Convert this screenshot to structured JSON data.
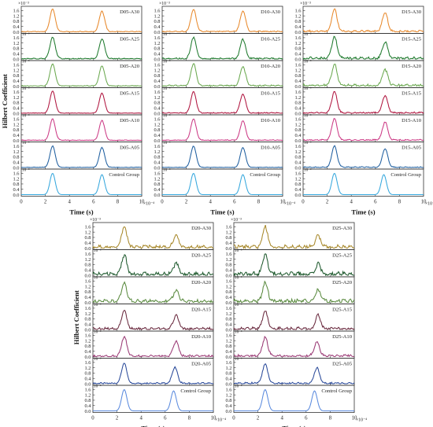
{
  "figure": {
    "ylabel": "Hilbert Coefficient",
    "xlabel": "Time (s)",
    "x_exponent": "×10⁻⁴",
    "y_exponent": "×10⁻³",
    "y_exponent_inline": "10⁻³",
    "x_ticks": [
      "0",
      "2",
      "4",
      "6",
      "8",
      "10"
    ],
    "y_ticks": [
      "0.0",
      "0.4",
      "0.8",
      "1.2",
      "1.6"
    ]
  },
  "chart_data": [
    {
      "type": "line",
      "group": "D05",
      "xlabel": "Time (s)",
      "ylabel": "Hilbert Coefficient",
      "xlim": [
        0,
        10
      ],
      "ylim": [
        0,
        1.8
      ],
      "x_units": "×10⁻⁴",
      "y_units": "×10⁻³",
      "series": [
        {
          "name": "D05-A30",
          "color": "#e8892c",
          "peaks": [
            {
              "x": 2.6,
              "y": 1.7
            },
            {
              "x": 6.7,
              "y": 1.55
            }
          ],
          "noise": 0.03
        },
        {
          "name": "D05-A25",
          "color": "#1f7a2e",
          "peaks": [
            {
              "x": 2.6,
              "y": 1.6
            },
            {
              "x": 6.7,
              "y": 1.5
            }
          ],
          "noise": 0.04
        },
        {
          "name": "D05-A20",
          "color": "#6aa84f",
          "peaks": [
            {
              "x": 2.6,
              "y": 1.65
            },
            {
              "x": 6.7,
              "y": 1.5
            }
          ],
          "noise": 0.03
        },
        {
          "name": "D05-A15",
          "color": "#b0153f",
          "peaks": [
            {
              "x": 2.6,
              "y": 1.65
            },
            {
              "x": 6.7,
              "y": 1.5
            }
          ],
          "noise": 0.02
        },
        {
          "name": "D05-A10",
          "color": "#cc3a85",
          "peaks": [
            {
              "x": 2.6,
              "y": 1.6
            },
            {
              "x": 6.7,
              "y": 1.5
            }
          ],
          "noise": 0.02
        },
        {
          "name": "D05-A05",
          "color": "#1f5fa0",
          "peaks": [
            {
              "x": 2.6,
              "y": 1.6
            },
            {
              "x": 6.7,
              "y": 1.5
            }
          ],
          "noise": 0.02
        },
        {
          "name": "Control Group",
          "color": "#35a7dd",
          "peaks": [
            {
              "x": 2.6,
              "y": 1.6
            },
            {
              "x": 6.7,
              "y": 1.5
            }
          ],
          "noise": 0.0
        }
      ]
    },
    {
      "type": "line",
      "group": "D10",
      "xlabel": "Time (s)",
      "xlim": [
        0,
        10
      ],
      "ylim": [
        0,
        1.8
      ],
      "x_units": "×10⁻⁴",
      "y_units": "×10⁻³",
      "series": [
        {
          "name": "D10-A30",
          "color": "#e8892c",
          "peaks": [
            {
              "x": 2.6,
              "y": 1.65
            },
            {
              "x": 6.7,
              "y": 1.55
            }
          ],
          "noise": 0.05
        },
        {
          "name": "D10-A25",
          "color": "#1f7a2e",
          "peaks": [
            {
              "x": 2.6,
              "y": 1.6
            },
            {
              "x": 6.7,
              "y": 1.45
            }
          ],
          "noise": 0.06
        },
        {
          "name": "D10-A20",
          "color": "#6aa84f",
          "peaks": [
            {
              "x": 2.6,
              "y": 1.65
            },
            {
              "x": 6.7,
              "y": 1.45
            }
          ],
          "noise": 0.06
        },
        {
          "name": "D10-A15",
          "color": "#b0153f",
          "peaks": [
            {
              "x": 2.6,
              "y": 1.6
            },
            {
              "x": 6.7,
              "y": 1.45
            }
          ],
          "noise": 0.04
        },
        {
          "name": "D10-A10",
          "color": "#cc3a85",
          "peaks": [
            {
              "x": 2.6,
              "y": 1.6
            },
            {
              "x": 6.7,
              "y": 1.45
            }
          ],
          "noise": 0.03
        },
        {
          "name": "D10-A05",
          "color": "#1f5fa0",
          "peaks": [
            {
              "x": 2.6,
              "y": 1.6
            },
            {
              "x": 6.7,
              "y": 1.5
            }
          ],
          "noise": 0.02
        },
        {
          "name": "Control Group",
          "color": "#35a7dd",
          "peaks": [
            {
              "x": 2.6,
              "y": 1.6
            },
            {
              "x": 6.7,
              "y": 1.5
            }
          ],
          "noise": 0.0
        }
      ]
    },
    {
      "type": "line",
      "group": "D15",
      "xlabel": "Time (s)",
      "xlim": [
        0,
        10
      ],
      "ylim": [
        0,
        1.8
      ],
      "x_units": "×10⁻⁴",
      "y_units": "×10⁻³",
      "series": [
        {
          "name": "D15-A30",
          "color": "#e8892c",
          "peaks": [
            {
              "x": 2.6,
              "y": 1.65
            },
            {
              "x": 6.8,
              "y": 1.4
            }
          ],
          "noise": 0.08
        },
        {
          "name": "D15-A25",
          "color": "#1f7a2e",
          "peaks": [
            {
              "x": 2.6,
              "y": 1.6
            },
            {
              "x": 6.8,
              "y": 1.25
            }
          ],
          "noise": 0.1
        },
        {
          "name": "D15-A20",
          "color": "#6aa84f",
          "peaks": [
            {
              "x": 2.6,
              "y": 1.6
            },
            {
              "x": 6.8,
              "y": 1.2
            }
          ],
          "noise": 0.1
        },
        {
          "name": "D15-A15",
          "color": "#b0153f",
          "peaks": [
            {
              "x": 2.6,
              "y": 1.6
            },
            {
              "x": 6.8,
              "y": 1.3
            }
          ],
          "noise": 0.06
        },
        {
          "name": "D15-A10",
          "color": "#cc3a85",
          "peaks": [
            {
              "x": 2.6,
              "y": 1.6
            },
            {
              "x": 6.8,
              "y": 1.35
            }
          ],
          "noise": 0.05
        },
        {
          "name": "D15-A05",
          "color": "#1f5fa0",
          "peaks": [
            {
              "x": 2.6,
              "y": 1.6
            },
            {
              "x": 6.8,
              "y": 1.4
            }
          ],
          "noise": 0.04
        },
        {
          "name": "Control Group",
          "color": "#35a7dd",
          "peaks": [
            {
              "x": 2.6,
              "y": 1.6
            },
            {
              "x": 6.7,
              "y": 1.5
            }
          ],
          "noise": 0.0
        }
      ]
    },
    {
      "type": "line",
      "group": "D20",
      "xlabel": "Time (s)",
      "ylabel": "Hilbert Coefficient",
      "xlim": [
        0,
        10
      ],
      "ylim": [
        0,
        1.8
      ],
      "x_units": "×10⁻⁴",
      "y_units": "×10⁻³",
      "series": [
        {
          "name": "D20-A30",
          "color": "#a8892c",
          "peaks": [
            {
              "x": 2.6,
              "y": 1.55
            },
            {
              "x": 6.9,
              "y": 0.85
            }
          ],
          "noise": 0.14
        },
        {
          "name": "D20-A25",
          "color": "#1f5a2e",
          "peaks": [
            {
              "x": 2.6,
              "y": 1.45
            },
            {
              "x": 6.9,
              "y": 0.8
            }
          ],
          "noise": 0.15
        },
        {
          "name": "D20-A20",
          "color": "#5a8a3f",
          "peaks": [
            {
              "x": 2.6,
              "y": 1.4
            },
            {
              "x": 6.9,
              "y": 0.85
            }
          ],
          "noise": 0.14
        },
        {
          "name": "D20-A15",
          "color": "#6a2a3f",
          "peaks": [
            {
              "x": 2.6,
              "y": 1.35
            },
            {
              "x": 6.9,
              "y": 1.0
            }
          ],
          "noise": 0.1
        },
        {
          "name": "D20-A10",
          "color": "#9a3a75",
          "peaks": [
            {
              "x": 2.6,
              "y": 1.45
            },
            {
              "x": 6.9,
              "y": 1.1
            }
          ],
          "noise": 0.08
        },
        {
          "name": "D20-A05",
          "color": "#2a4a9a",
          "peaks": [
            {
              "x": 2.6,
              "y": 1.5
            },
            {
              "x": 6.8,
              "y": 1.2
            }
          ],
          "noise": 0.06
        },
        {
          "name": "Control Group",
          "color": "#5a8ade",
          "peaks": [
            {
              "x": 2.6,
              "y": 1.6
            },
            {
              "x": 6.7,
              "y": 1.5
            }
          ],
          "noise": 0.0
        }
      ]
    },
    {
      "type": "line",
      "group": "D25",
      "xlabel": "Time (s)",
      "xlim": [
        0,
        10
      ],
      "ylim": [
        0,
        1.8
      ],
      "x_units": "×10⁻⁴",
      "y_units": "×10⁻³",
      "series": [
        {
          "name": "D25-A30",
          "color": "#a8892c",
          "peaks": [
            {
              "x": 2.6,
              "y": 1.5
            },
            {
              "x": 7.0,
              "y": 0.85
            }
          ],
          "noise": 0.16
        },
        {
          "name": "D25-A25",
          "color": "#1f5a2e",
          "peaks": [
            {
              "x": 2.6,
              "y": 1.4
            },
            {
              "x": 7.0,
              "y": 0.8
            }
          ],
          "noise": 0.17
        },
        {
          "name": "D25-A20",
          "color": "#5a8a3f",
          "peaks": [
            {
              "x": 2.6,
              "y": 1.35
            },
            {
              "x": 7.0,
              "y": 0.85
            }
          ],
          "noise": 0.16
        },
        {
          "name": "D25-A15",
          "color": "#6a2a3f",
          "peaks": [
            {
              "x": 2.6,
              "y": 1.3
            },
            {
              "x": 7.0,
              "y": 1.0
            }
          ],
          "noise": 0.12
        },
        {
          "name": "D25-A10",
          "color": "#9a3a75",
          "peaks": [
            {
              "x": 2.6,
              "y": 1.4
            },
            {
              "x": 6.9,
              "y": 1.05
            }
          ],
          "noise": 0.1
        },
        {
          "name": "D25-A05",
          "color": "#2a4a9a",
          "peaks": [
            {
              "x": 2.6,
              "y": 1.45
            },
            {
              "x": 6.9,
              "y": 1.15
            }
          ],
          "noise": 0.07
        },
        {
          "name": "Control Group",
          "color": "#5a8ade",
          "peaks": [
            {
              "x": 2.6,
              "y": 1.6
            },
            {
              "x": 6.7,
              "y": 1.5
            }
          ],
          "noise": 0.0
        }
      ]
    }
  ]
}
